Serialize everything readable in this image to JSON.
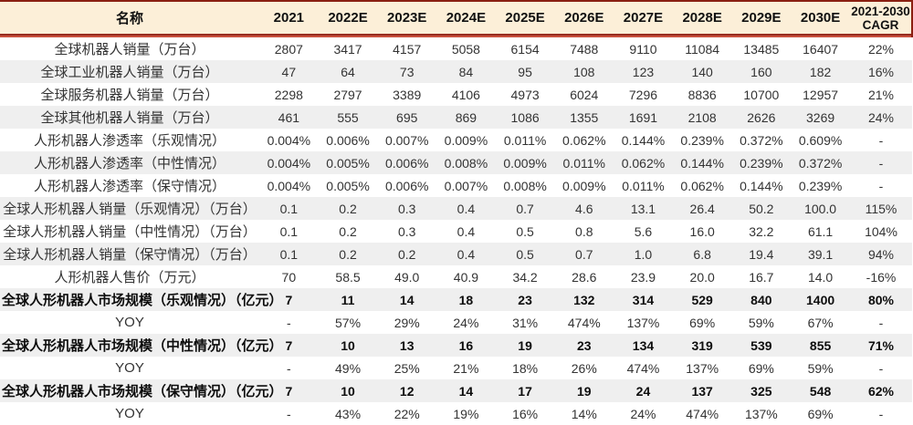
{
  "colors": {
    "header_bg": "#fcefd8",
    "top_border": "#8a1f11",
    "rule_dark": "#962b1e",
    "rule_light": "#c9503c",
    "stripe": "#efefef",
    "text": "#333333"
  },
  "chart_data": {
    "type": "table",
    "columns": [
      "名称",
      "2021",
      "2022E",
      "2023E",
      "2024E",
      "2025E",
      "2026E",
      "2027E",
      "2028E",
      "2029E",
      "2030E",
      "2021-2030 CAGR"
    ],
    "rows": [
      {
        "label": "全球机器人销量（万台）",
        "bold": false,
        "values": [
          "2807",
          "3417",
          "4157",
          "5058",
          "6154",
          "7488",
          "9110",
          "11084",
          "13485",
          "16407",
          "22%"
        ]
      },
      {
        "label": "全球工业机器人销量（万台）",
        "bold": false,
        "values": [
          "47",
          "64",
          "73",
          "84",
          "95",
          "108",
          "123",
          "140",
          "160",
          "182",
          "16%"
        ]
      },
      {
        "label": "全球服务机器人销量（万台）",
        "bold": false,
        "values": [
          "2298",
          "2797",
          "3389",
          "4106",
          "4973",
          "6024",
          "7296",
          "8836",
          "10700",
          "12957",
          "21%"
        ]
      },
      {
        "label": "全球其他机器人销量（万台）",
        "bold": false,
        "values": [
          "461",
          "555",
          "695",
          "869",
          "1086",
          "1355",
          "1691",
          "2108",
          "2626",
          "3269",
          "24%"
        ]
      },
      {
        "label": "人形机器人渗透率（乐观情况）",
        "bold": false,
        "values": [
          "0.004%",
          "0.006%",
          "0.007%",
          "0.009%",
          "0.011%",
          "0.062%",
          "0.144%",
          "0.239%",
          "0.372%",
          "0.609%",
          "-"
        ]
      },
      {
        "label": "人形机器人渗透率（中性情况）",
        "bold": false,
        "values": [
          "0.004%",
          "0.005%",
          "0.006%",
          "0.008%",
          "0.009%",
          "0.011%",
          "0.062%",
          "0.144%",
          "0.239%",
          "0.372%",
          "-"
        ]
      },
      {
        "label": "人形机器人渗透率（保守情况）",
        "bold": false,
        "values": [
          "0.004%",
          "0.005%",
          "0.006%",
          "0.007%",
          "0.008%",
          "0.009%",
          "0.011%",
          "0.062%",
          "0.144%",
          "0.239%",
          "-"
        ]
      },
      {
        "label": "全球人形机器人销量（乐观情况）（万台）",
        "bold": false,
        "values": [
          "0.1",
          "0.2",
          "0.3",
          "0.4",
          "0.7",
          "4.6",
          "13.1",
          "26.4",
          "50.2",
          "100.0",
          "115%"
        ]
      },
      {
        "label": "全球人形机器人销量（中性情况）（万台）",
        "bold": false,
        "values": [
          "0.1",
          "0.2",
          "0.3",
          "0.4",
          "0.5",
          "0.8",
          "5.6",
          "16.0",
          "32.2",
          "61.1",
          "104%"
        ]
      },
      {
        "label": "全球人形机器人销量（保守情况）（万台）",
        "bold": false,
        "values": [
          "0.1",
          "0.2",
          "0.2",
          "0.4",
          "0.5",
          "0.7",
          "1.0",
          "6.8",
          "19.4",
          "39.1",
          "94%"
        ]
      },
      {
        "label": "人形机器人售价（万元）",
        "bold": false,
        "values": [
          "70",
          "58.5",
          "49.0",
          "40.9",
          "34.2",
          "28.6",
          "23.9",
          "20.0",
          "16.7",
          "14.0",
          "-16%"
        ]
      },
      {
        "label": "全球人形机器人市场规模（乐观情况）（亿元）",
        "bold": true,
        "values": [
          "7",
          "11",
          "14",
          "18",
          "23",
          "132",
          "314",
          "529",
          "840",
          "1400",
          "80%"
        ]
      },
      {
        "label": "YOY",
        "bold": false,
        "values": [
          "-",
          "57%",
          "29%",
          "24%",
          "31%",
          "474%",
          "137%",
          "69%",
          "59%",
          "67%",
          "-"
        ]
      },
      {
        "label": "全球人形机器人市场规模（中性情况）（亿元）",
        "bold": true,
        "values": [
          "7",
          "10",
          "13",
          "16",
          "19",
          "23",
          "134",
          "319",
          "539",
          "855",
          "71%"
        ]
      },
      {
        "label": "YOY",
        "bold": false,
        "values": [
          "-",
          "49%",
          "25%",
          "21%",
          "18%",
          "26%",
          "474%",
          "137%",
          "69%",
          "59%",
          "-"
        ]
      },
      {
        "label": "全球人形机器人市场规模（保守情况）（亿元）",
        "bold": true,
        "values": [
          "7",
          "10",
          "12",
          "14",
          "17",
          "19",
          "24",
          "137",
          "325",
          "548",
          "62%"
        ]
      },
      {
        "label": "YOY",
        "bold": false,
        "values": [
          "-",
          "43%",
          "22%",
          "19%",
          "16%",
          "14%",
          "24%",
          "474%",
          "137%",
          "69%",
          "-"
        ]
      }
    ]
  }
}
